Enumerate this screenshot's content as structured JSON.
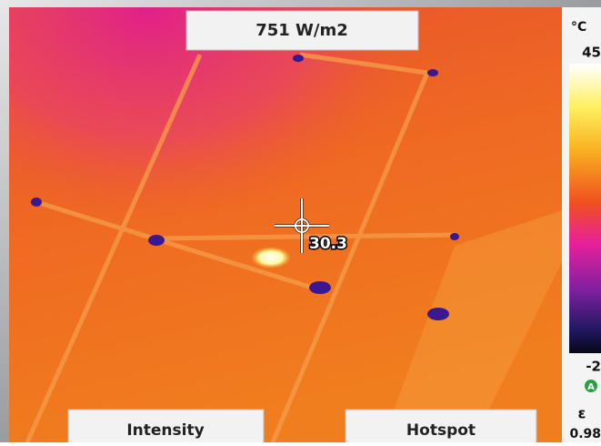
{
  "header": {
    "irradiance": "751 W/m2"
  },
  "scale": {
    "unit": "°C",
    "max": "45",
    "min": "-2",
    "mode": "A"
  },
  "spot": {
    "value": "30.3"
  },
  "buttons": [
    "Intensity",
    "Hotspot"
  ],
  "emissivity": {
    "symbol": "ε",
    "value": "0.98"
  }
}
